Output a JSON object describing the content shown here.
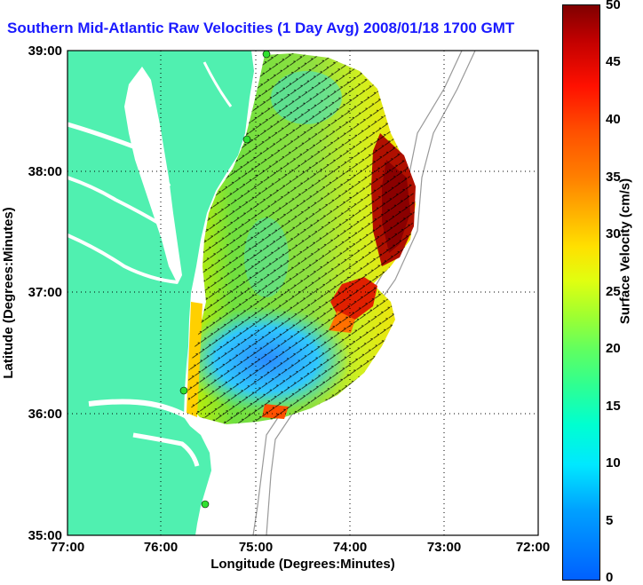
{
  "title": "Southern Mid-Atlantic Raw Velocities (1 Day Avg) 2008/01/18 1700 GMT",
  "map": {
    "x_axis": {
      "label": "Longitude (Degrees:Minutes)",
      "ticks": [
        "77:00",
        "76:00",
        "75:00",
        "74:00",
        "73:00",
        "72:00"
      ]
    },
    "y_axis": {
      "label": "Latitude (Degrees:Minutes)",
      "ticks": [
        "39:00",
        "38:00",
        "37:00",
        "36:00",
        "35:00"
      ]
    },
    "land_color": "#50f0b0",
    "grid": "dotted"
  },
  "colorbar": {
    "label": "Surface Velocity (cm/s)",
    "ticks": [
      "50",
      "45",
      "40",
      "35",
      "30",
      "25",
      "20",
      "15",
      "10",
      "5",
      "0"
    ],
    "range": [
      0,
      50
    ]
  }
}
